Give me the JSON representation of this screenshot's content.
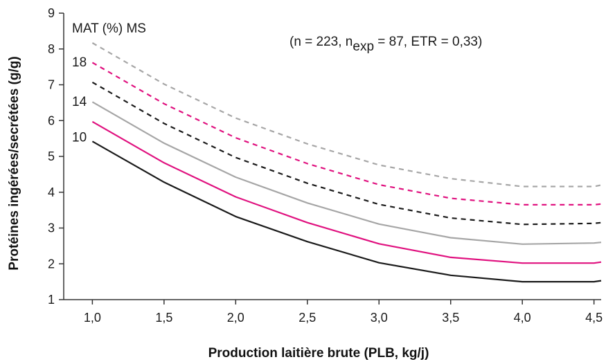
{
  "chart_data": {
    "type": "line",
    "xlabel": "Production laitière brute (PLB, kg/j)",
    "ylabel": "Protéines ingérées/secrétées (g/g)",
    "xlim": [
      0.8,
      4.55
    ],
    "ylim": [
      1,
      9
    ],
    "x_ticks": [
      1.0,
      1.5,
      2.0,
      2.5,
      3.0,
      3.5,
      4.0,
      4.5
    ],
    "x_tick_labels": [
      "1,0",
      "1,5",
      "2,0",
      "2,5",
      "3,0",
      "3,5",
      "4,0",
      "4,5"
    ],
    "y_ticks": [
      1,
      2,
      3,
      4,
      5,
      6,
      7,
      8,
      9
    ],
    "y_tick_labels": [
      "1",
      "2",
      "3",
      "4",
      "5",
      "6",
      "7",
      "8",
      "9"
    ],
    "grid": false,
    "x": [
      1.0,
      1.5,
      2.0,
      2.5,
      3.0,
      3.5,
      4.0,
      4.5,
      4.55
    ],
    "series": [
      {
        "key": "s1",
        "color": "#1a1a1a",
        "dash": "solid",
        "values": [
          5.42,
          4.28,
          3.32,
          2.62,
          2.03,
          1.68,
          1.5,
          1.5,
          1.53
        ]
      },
      {
        "key": "s2",
        "color": "#e0117f",
        "dash": "solid",
        "values": [
          5.97,
          4.82,
          3.87,
          3.15,
          2.56,
          2.18,
          2.02,
          2.02,
          2.05
        ]
      },
      {
        "key": "s3",
        "color": "#a6a6a6",
        "dash": "solid",
        "values": [
          6.52,
          5.37,
          4.42,
          3.7,
          3.11,
          2.73,
          2.55,
          2.58,
          2.6
        ]
      },
      {
        "key": "s4",
        "color": "#1a1a1a",
        "dash": "dashed",
        "values": [
          7.07,
          5.92,
          4.97,
          4.25,
          3.66,
          3.28,
          3.1,
          3.13,
          3.15
        ]
      },
      {
        "key": "s5",
        "color": "#e0117f",
        "dash": "dashed",
        "values": [
          7.62,
          6.47,
          5.52,
          4.8,
          4.21,
          3.83,
          3.65,
          3.65,
          3.67
        ]
      },
      {
        "key": "s6",
        "color": "#a6a6a6",
        "dash": "dashed",
        "values": [
          8.17,
          7.02,
          6.07,
          5.35,
          4.76,
          4.38,
          4.16,
          4.16,
          4.2
        ]
      }
    ],
    "annotations": {
      "mat_title": "MAT (%) MS",
      "curve_labels": [
        {
          "text": "18",
          "y": 7.65
        },
        {
          "text": "14",
          "y": 6.55
        },
        {
          "text": "10",
          "y": 5.55
        }
      ],
      "stats": {
        "prefix": "(n = 223, n",
        "subscript": "exp",
        "suffix": " = 87, ETR = 0,33)"
      }
    }
  }
}
